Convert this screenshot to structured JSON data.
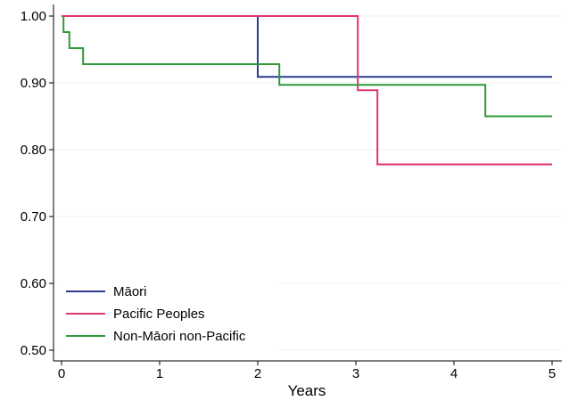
{
  "chart_data": {
    "type": "line",
    "step": true,
    "xlabel": "Years",
    "ylabel": "",
    "xlim": [
      0,
      5
    ],
    "ylim": [
      0.5,
      1.0
    ],
    "x_ticks": [
      "0",
      "1",
      "2",
      "3",
      "4",
      "5"
    ],
    "y_ticks": [
      "0.50",
      "0.60",
      "0.70",
      "0.80",
      "0.90",
      "1.00"
    ],
    "grid": "horizontal-faint",
    "legend_position": "bottom-left",
    "series": [
      {
        "name": "Māori",
        "color": "#2b3a8f",
        "points": [
          [
            0,
            1.0
          ],
          [
            2.0,
            1.0
          ],
          [
            2.0,
            0.909
          ],
          [
            5.0,
            0.909
          ]
        ]
      },
      {
        "name": "Pacific Peoples",
        "color": "#e0356e",
        "points": [
          [
            0,
            1.0
          ],
          [
            3.02,
            1.0
          ],
          [
            3.02,
            0.889
          ],
          [
            3.22,
            0.889
          ],
          [
            3.22,
            0.778
          ],
          [
            5.0,
            0.778
          ]
        ]
      },
      {
        "name": "Non-Māori non-Pacific",
        "color": "#2e9a3a",
        "points": [
          [
            0.02,
            1.0
          ],
          [
            0.02,
            0.976
          ],
          [
            0.08,
            0.976
          ],
          [
            0.08,
            0.952
          ],
          [
            0.22,
            0.952
          ],
          [
            0.22,
            0.928
          ],
          [
            2.22,
            0.928
          ],
          [
            2.22,
            0.897
          ],
          [
            4.32,
            0.897
          ],
          [
            4.32,
            0.85
          ],
          [
            5.0,
            0.85
          ]
        ]
      }
    ]
  }
}
